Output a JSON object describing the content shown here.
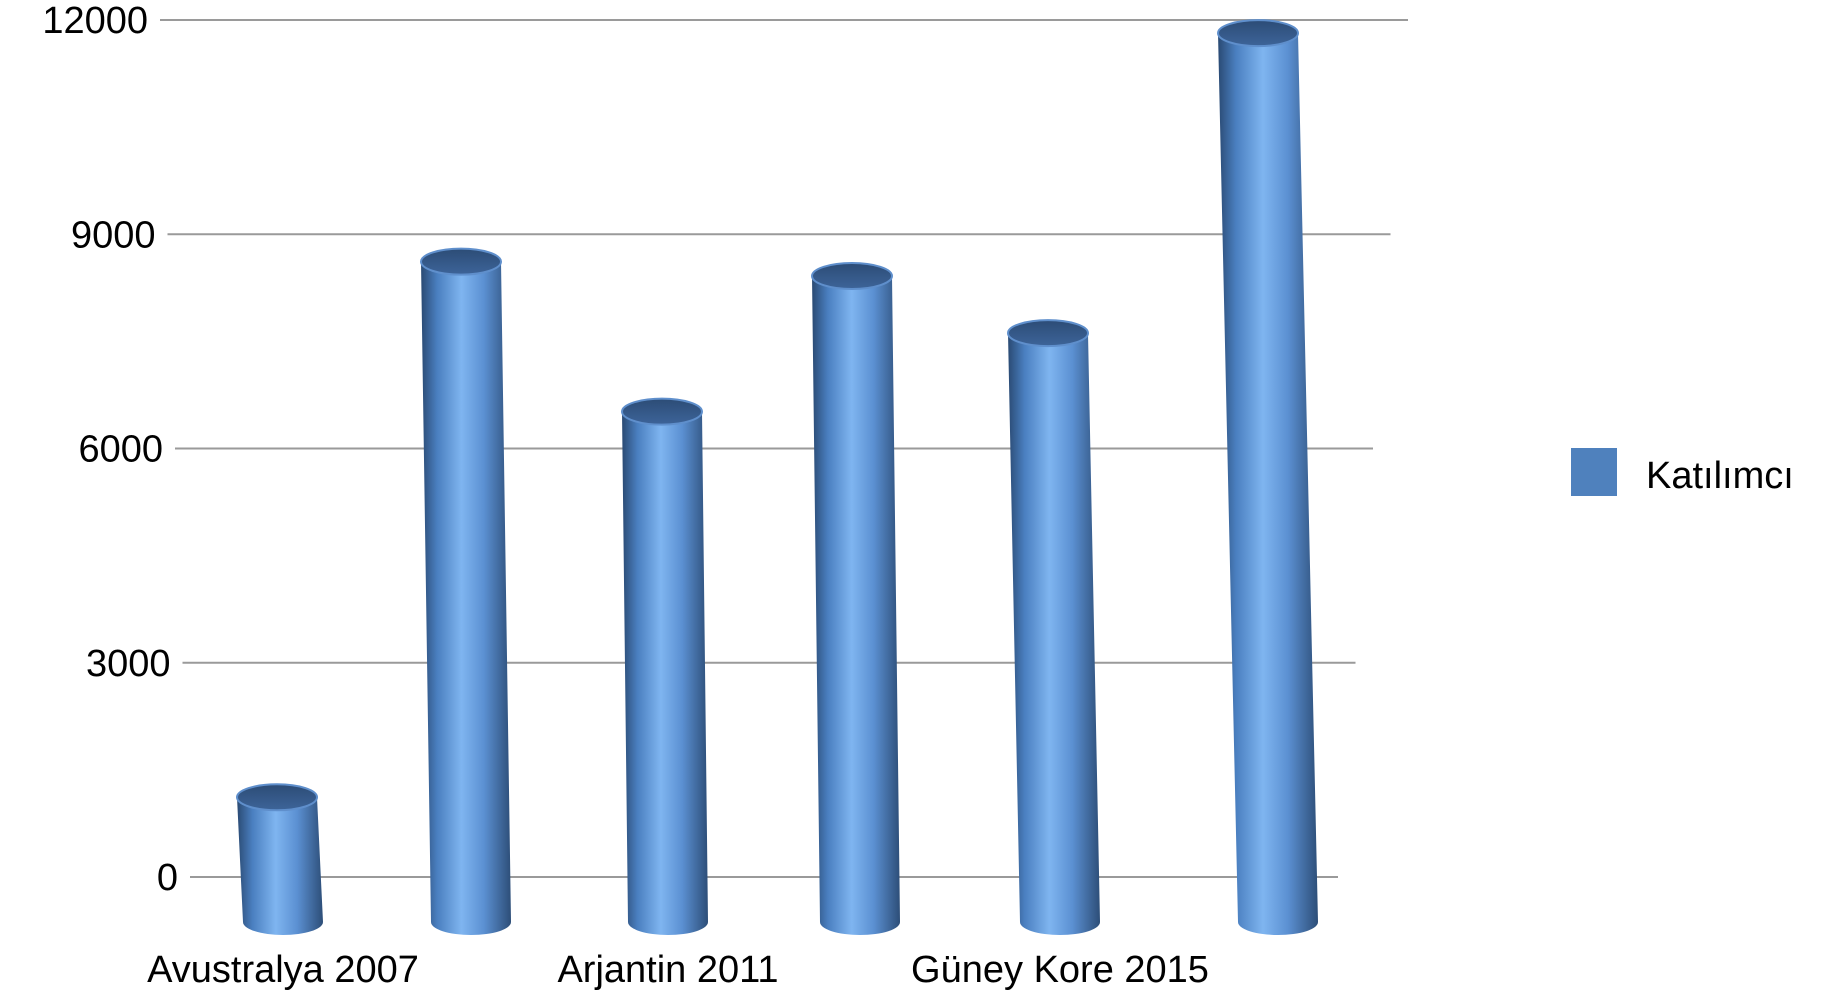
{
  "chart_data": {
    "type": "bar",
    "style": "3d-cylinder",
    "categories": [
      "Avustralya 2007",
      "",
      "Arjantin 2011",
      "",
      "Güney Kore 2015",
      ""
    ],
    "series": [
      {
        "name": "Katılımcı",
        "color": "#4f81bd",
        "values": [
          1200,
          8700,
          6600,
          8500,
          7700,
          11900
        ]
      }
    ],
    "yticks": [
      0,
      3000,
      6000,
      9000,
      12000
    ],
    "ylim": [
      0,
      12000
    ],
    "grid": true,
    "legend_position": "right"
  }
}
